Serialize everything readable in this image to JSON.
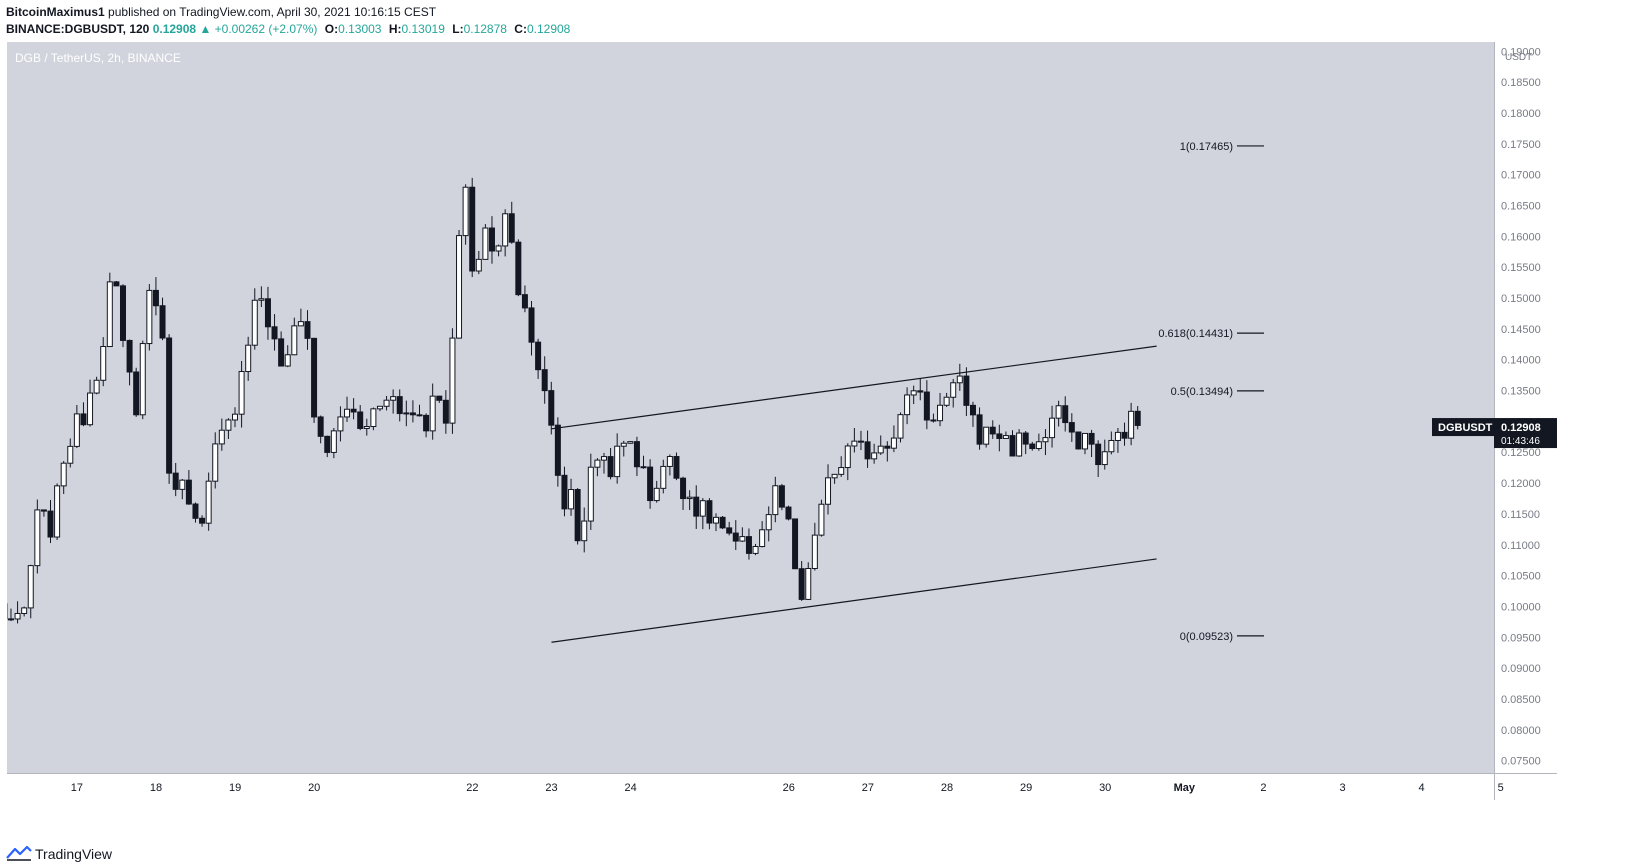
{
  "header": {
    "author": "BitcoinMaximus1",
    "published_text": "published on TradingView.com, April 30, 2021 10:16:15 CEST",
    "symbol_line": "BINANCE:DGBUSDT, 120",
    "last": "0.12908",
    "change": "▲ +0.00262 (+2.07%)",
    "o_label": "O:",
    "o_value": "0.13003",
    "h_label": "H:",
    "h_value": "0.13019",
    "l_label": "L:",
    "l_value": "0.12878",
    "c_label": "C:",
    "c_value": "0.12908"
  },
  "footer": {
    "brand": "TradingView",
    "logo_icon": "tradingview-logo-icon"
  },
  "colors": {
    "background": "#d1d4dc",
    "candle_up": "#ffffff",
    "candle_down": "#131722",
    "green": "#26a69a",
    "axis_bg": "#ffffff"
  },
  "chart_data": {
    "type": "candlestick",
    "title": "DGB / TetherUS, 2h, BINANCE",
    "axis_unit": "USDT",
    "ylim": [
      0.073,
      0.1915
    ],
    "y_ticks": [
      "0.07500",
      "0.08000",
      "0.08500",
      "0.09000",
      "0.09500",
      "0.10000",
      "0.10500",
      "0.11000",
      "0.11500",
      "0.12000",
      "0.12500",
      "0.13000",
      "0.13500",
      "0.14000",
      "0.14500",
      "0.15000",
      "0.15500",
      "0.16000",
      "0.16500",
      "0.17000",
      "0.17500",
      "0.18000",
      "0.18500",
      "0.19000"
    ],
    "x_ticks": [
      {
        "label": "17",
        "day": 17
      },
      {
        "label": "18",
        "day": 18
      },
      {
        "label": "19",
        "day": 19
      },
      {
        "label": "20",
        "day": 20
      },
      {
        "label": "22",
        "day": 22
      },
      {
        "label": "23",
        "day": 23
      },
      {
        "label": "24",
        "day": 24
      },
      {
        "label": "26",
        "day": 26
      },
      {
        "label": "27",
        "day": 27
      },
      {
        "label": "28",
        "day": 28
      },
      {
        "label": "29",
        "day": 29
      },
      {
        "label": "30",
        "day": 30
      },
      {
        "label": "May",
        "day": 31,
        "bold": true
      },
      {
        "label": "2",
        "day": 32
      },
      {
        "label": "3",
        "day": 33
      },
      {
        "label": "4",
        "day": 34
      },
      {
        "label": "5",
        "day": 35
      }
    ],
    "price_label": {
      "symbol": "DGBUSDT",
      "price": "0.12908",
      "countdown": "01:43:46",
      "value": 0.12908
    },
    "fib_levels": [
      {
        "label": "1(0.17465)",
        "value": 0.17465
      },
      {
        "label": "0.618(0.14431)",
        "value": 0.14431
      },
      {
        "label": "0.5(0.13494)",
        "value": 0.13494
      },
      {
        "label": "0(0.09523)",
        "value": 0.09523
      }
    ],
    "channel_lines": [
      {
        "name": "upper",
        "points": [
          [
            23.0,
            0.1288
          ],
          [
            30.65,
            0.1422
          ]
        ]
      },
      {
        "name": "lower",
        "points": [
          [
            23.0,
            0.0942
          ],
          [
            30.65,
            0.1077
          ]
        ]
      }
    ],
    "candle_interval_days": 0.0833,
    "candle_anchors": [
      [
        16.0,
        0.1
      ],
      [
        16.3,
        0.096
      ],
      [
        16.5,
        0.114
      ],
      [
        16.7,
        0.113
      ],
      [
        16.85,
        0.126
      ],
      [
        17.05,
        0.13
      ],
      [
        17.3,
        0.141
      ],
      [
        17.45,
        0.155
      ],
      [
        17.6,
        0.14
      ],
      [
        17.75,
        0.133
      ],
      [
        17.95,
        0.155
      ],
      [
        18.1,
        0.14
      ],
      [
        18.2,
        0.115
      ],
      [
        18.35,
        0.123
      ],
      [
        18.55,
        0.11
      ],
      [
        18.75,
        0.125
      ],
      [
        18.95,
        0.13
      ],
      [
        19.1,
        0.14
      ],
      [
        19.3,
        0.152
      ],
      [
        19.5,
        0.142
      ],
      [
        19.65,
        0.138
      ],
      [
        19.8,
        0.149
      ],
      [
        19.95,
        0.142
      ],
      [
        20.0,
        0.13
      ],
      [
        20.2,
        0.125
      ],
      [
        20.4,
        0.133
      ],
      [
        20.6,
        0.128
      ],
      [
        20.8,
        0.133
      ],
      [
        20.95,
        0.136
      ],
      [
        21.05,
        0.131
      ],
      [
        21.25,
        0.132
      ],
      [
        21.45,
        0.13
      ],
      [
        21.55,
        0.136
      ],
      [
        21.7,
        0.13
      ],
      [
        21.8,
        0.155
      ],
      [
        21.9,
        0.17
      ],
      [
        22.0,
        0.152
      ],
      [
        22.15,
        0.162
      ],
      [
        22.3,
        0.156
      ],
      [
        22.45,
        0.165
      ],
      [
        22.6,
        0.15
      ],
      [
        22.75,
        0.145
      ],
      [
        22.85,
        0.138
      ],
      [
        23.0,
        0.128
      ],
      [
        23.15,
        0.116
      ],
      [
        23.25,
        0.119
      ],
      [
        23.35,
        0.11
      ],
      [
        23.55,
        0.125
      ],
      [
        23.75,
        0.123
      ],
      [
        24.0,
        0.127
      ],
      [
        24.25,
        0.118
      ],
      [
        24.45,
        0.124
      ],
      [
        24.65,
        0.12
      ],
      [
        24.9,
        0.115
      ],
      [
        25.1,
        0.114
      ],
      [
        25.25,
        0.11
      ],
      [
        25.45,
        0.109
      ],
      [
        25.65,
        0.112
      ],
      [
        25.85,
        0.119
      ],
      [
        26.0,
        0.112
      ],
      [
        26.1,
        0.103
      ],
      [
        26.2,
        0.1
      ],
      [
        26.35,
        0.114
      ],
      [
        26.55,
        0.121
      ],
      [
        26.75,
        0.125
      ],
      [
        26.95,
        0.125
      ],
      [
        27.2,
        0.127
      ],
      [
        27.4,
        0.13
      ],
      [
        27.5,
        0.133
      ],
      [
        27.6,
        0.137
      ],
      [
        27.75,
        0.131
      ],
      [
        27.9,
        0.132
      ],
      [
        28.05,
        0.134
      ],
      [
        28.2,
        0.136
      ],
      [
        28.3,
        0.131
      ],
      [
        28.45,
        0.127
      ],
      [
        28.6,
        0.129
      ],
      [
        28.8,
        0.126
      ],
      [
        29.0,
        0.127
      ],
      [
        29.2,
        0.126
      ],
      [
        29.35,
        0.131
      ],
      [
        29.5,
        0.13
      ],
      [
        29.6,
        0.125
      ],
      [
        29.7,
        0.129
      ],
      [
        29.8,
        0.126
      ],
      [
        29.95,
        0.124
      ],
      [
        30.1,
        0.126
      ],
      [
        30.2,
        0.129
      ],
      [
        30.35,
        0.13
      ],
      [
        30.45,
        0.1291
      ]
    ]
  }
}
